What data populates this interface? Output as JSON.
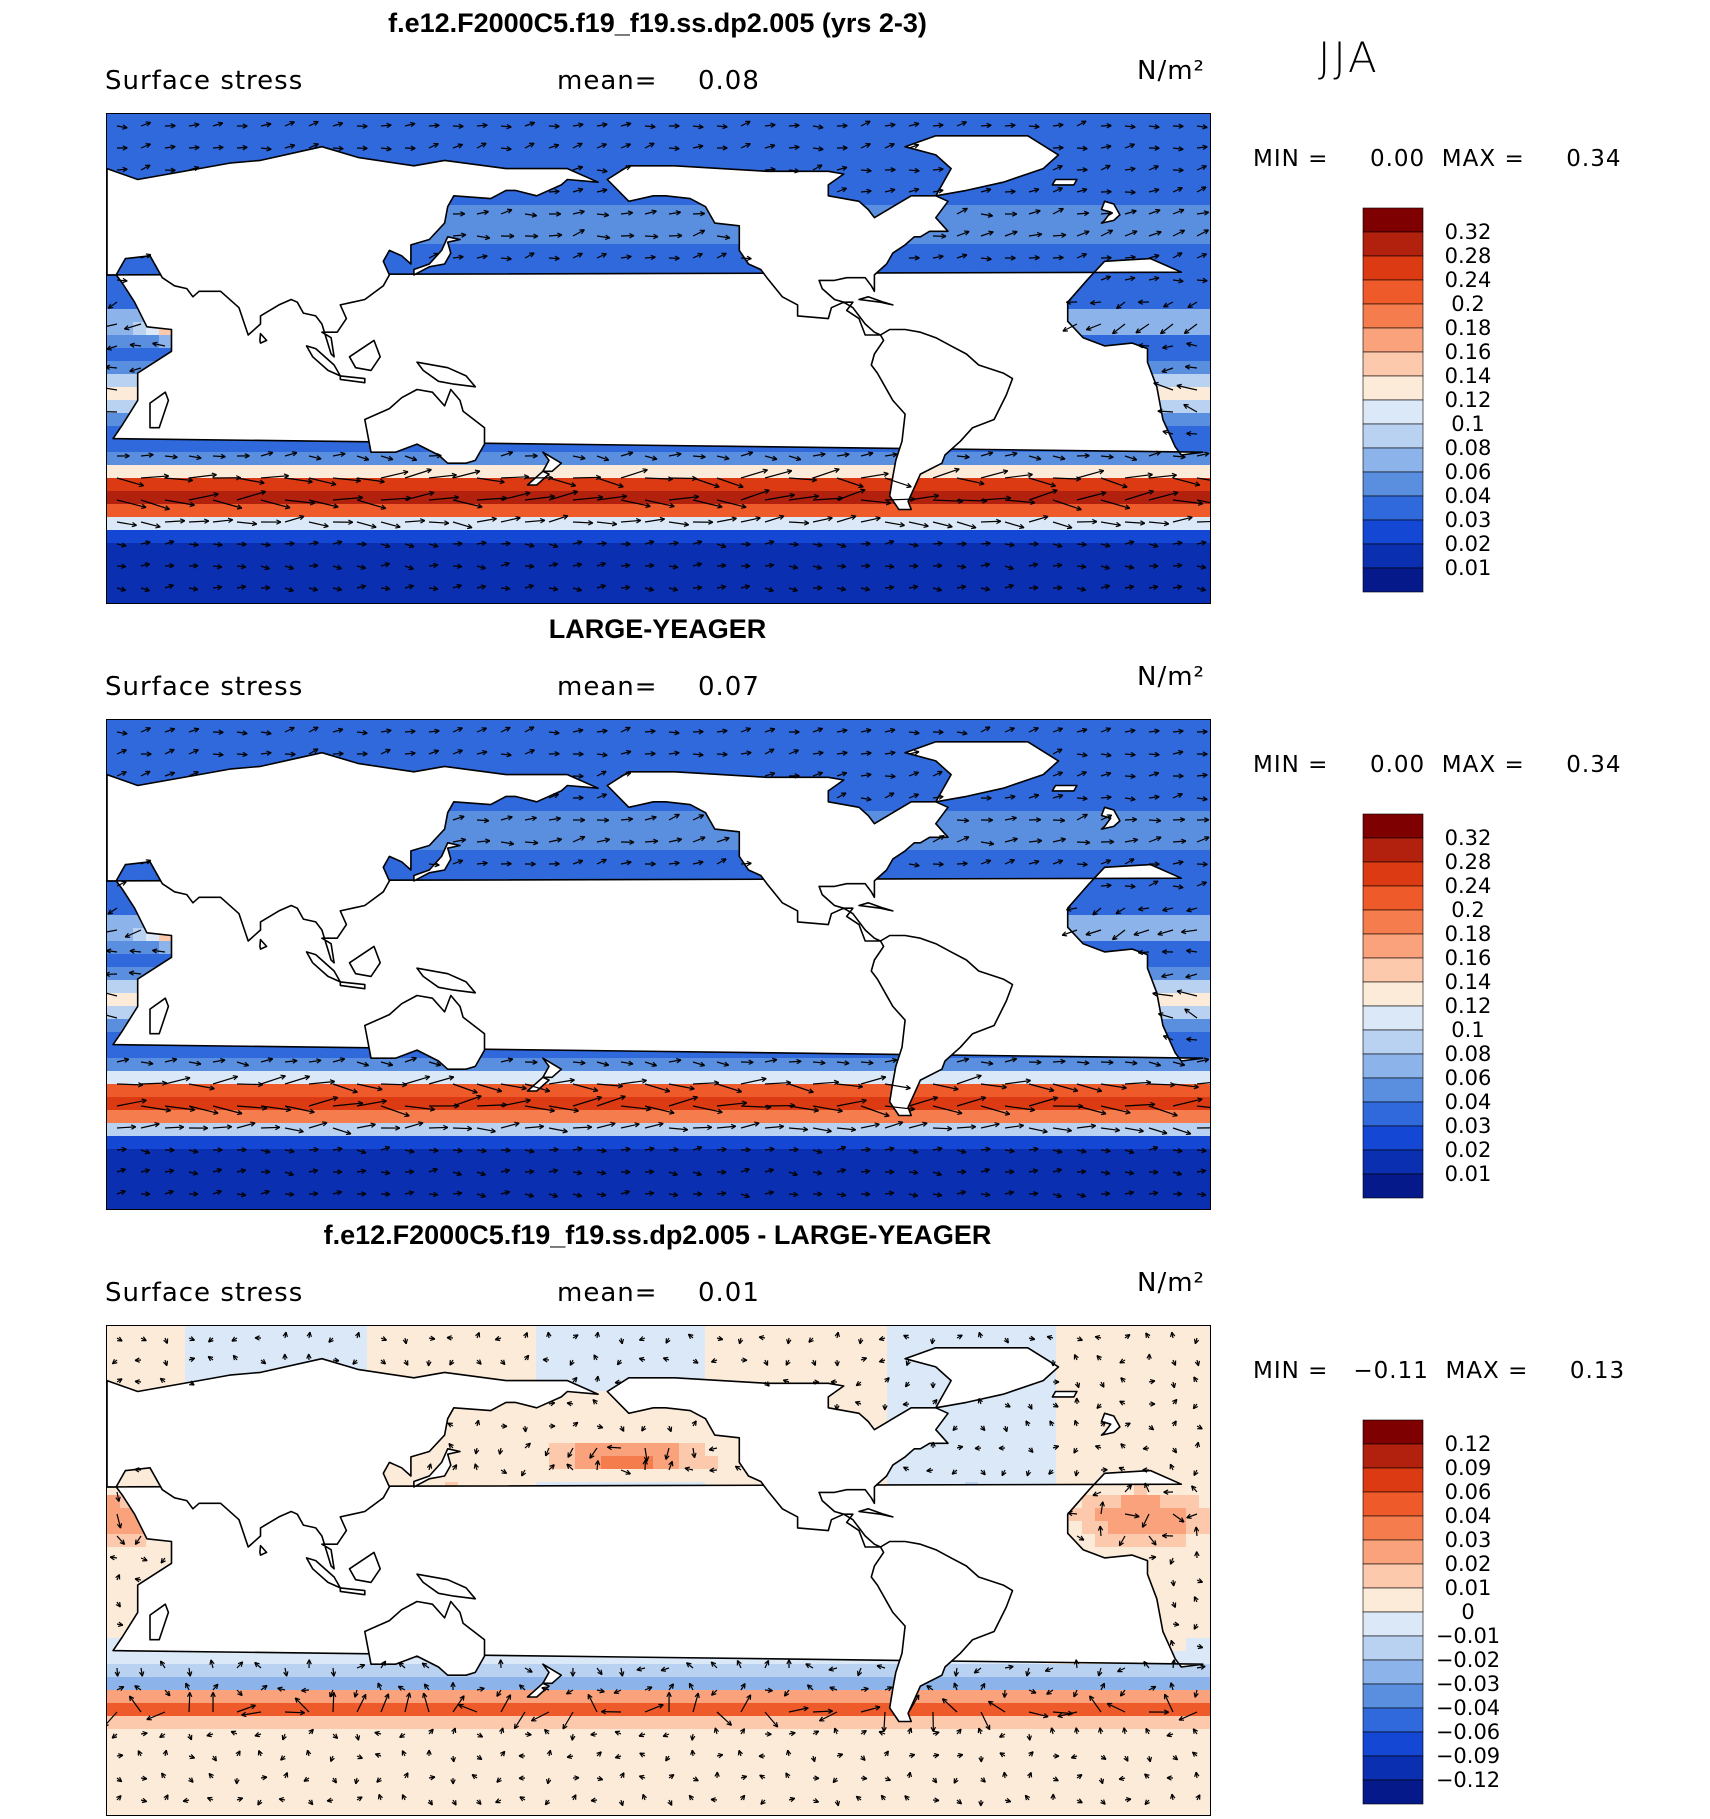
{
  "season": "JJA",
  "panels": [
    {
      "title": "f.e12.F2000C5.f19_f19.ss.dp2.005 (yrs 2-3)",
      "variable": "Surface stress",
      "mean_label": "mean=",
      "mean_value": "0.08",
      "units": "N/m²",
      "minmax": "MIN =     0.00  MAX =     0.34",
      "colorbar_labels": [
        "0.32",
        "0.28",
        "0.24",
        "0.2",
        "0.18",
        "0.16",
        "0.14",
        "0.12",
        "0.1",
        "0.08",
        "0.06",
        "0.04",
        "0.03",
        "0.02",
        "0.01"
      ]
    },
    {
      "title": "LARGE-YEAGER",
      "variable": "Surface stress",
      "mean_label": "mean=",
      "mean_value": "0.07",
      "units": "N/m²",
      "minmax": "MIN =     0.00  MAX =     0.34",
      "colorbar_labels": [
        "0.32",
        "0.28",
        "0.24",
        "0.2",
        "0.18",
        "0.16",
        "0.14",
        "0.12",
        "0.1",
        "0.08",
        "0.06",
        "0.04",
        "0.03",
        "0.02",
        "0.01"
      ]
    },
    {
      "title": "f.e12.F2000C5.f19_f19.ss.dp2.005 - LARGE-YEAGER",
      "variable": "Surface stress",
      "mean_label": "mean=",
      "mean_value": "0.01",
      "units": "N/m²",
      "minmax": "MIN =   −0.11  MAX =     0.13",
      "colorbar_labels": [
        "0.12",
        "0.09",
        "0.06",
        "0.04",
        "0.03",
        "0.02",
        "0.01",
        "0",
        "−0.01",
        "−0.02",
        "−0.03",
        "−0.04",
        "−0.06",
        "−0.09",
        "−0.12"
      ]
    }
  ],
  "colors": {
    "abs_scale": [
      "#7f0000",
      "#b2200e",
      "#dc3a12",
      "#ef5a2a",
      "#f57c4c",
      "#f9a27c",
      "#fcc9ad",
      "#fdebd9",
      "#dbe8f7",
      "#b9d2f2",
      "#8db4ea",
      "#5a8fe0",
      "#2f69db",
      "#1447d3",
      "#0a2fb0",
      "#06198a"
    ],
    "diff_scale": [
      "#7f0000",
      "#b2200e",
      "#dc3a12",
      "#ef5a2a",
      "#f57c4c",
      "#f9a27c",
      "#fcc9ad",
      "#fdebd9",
      "#dbe8f7",
      "#b9d2f2",
      "#8db4ea",
      "#5a8fe0",
      "#2f69db",
      "#1447d3",
      "#0a2fb0",
      "#06198a"
    ],
    "land": "#ffffff"
  }
}
